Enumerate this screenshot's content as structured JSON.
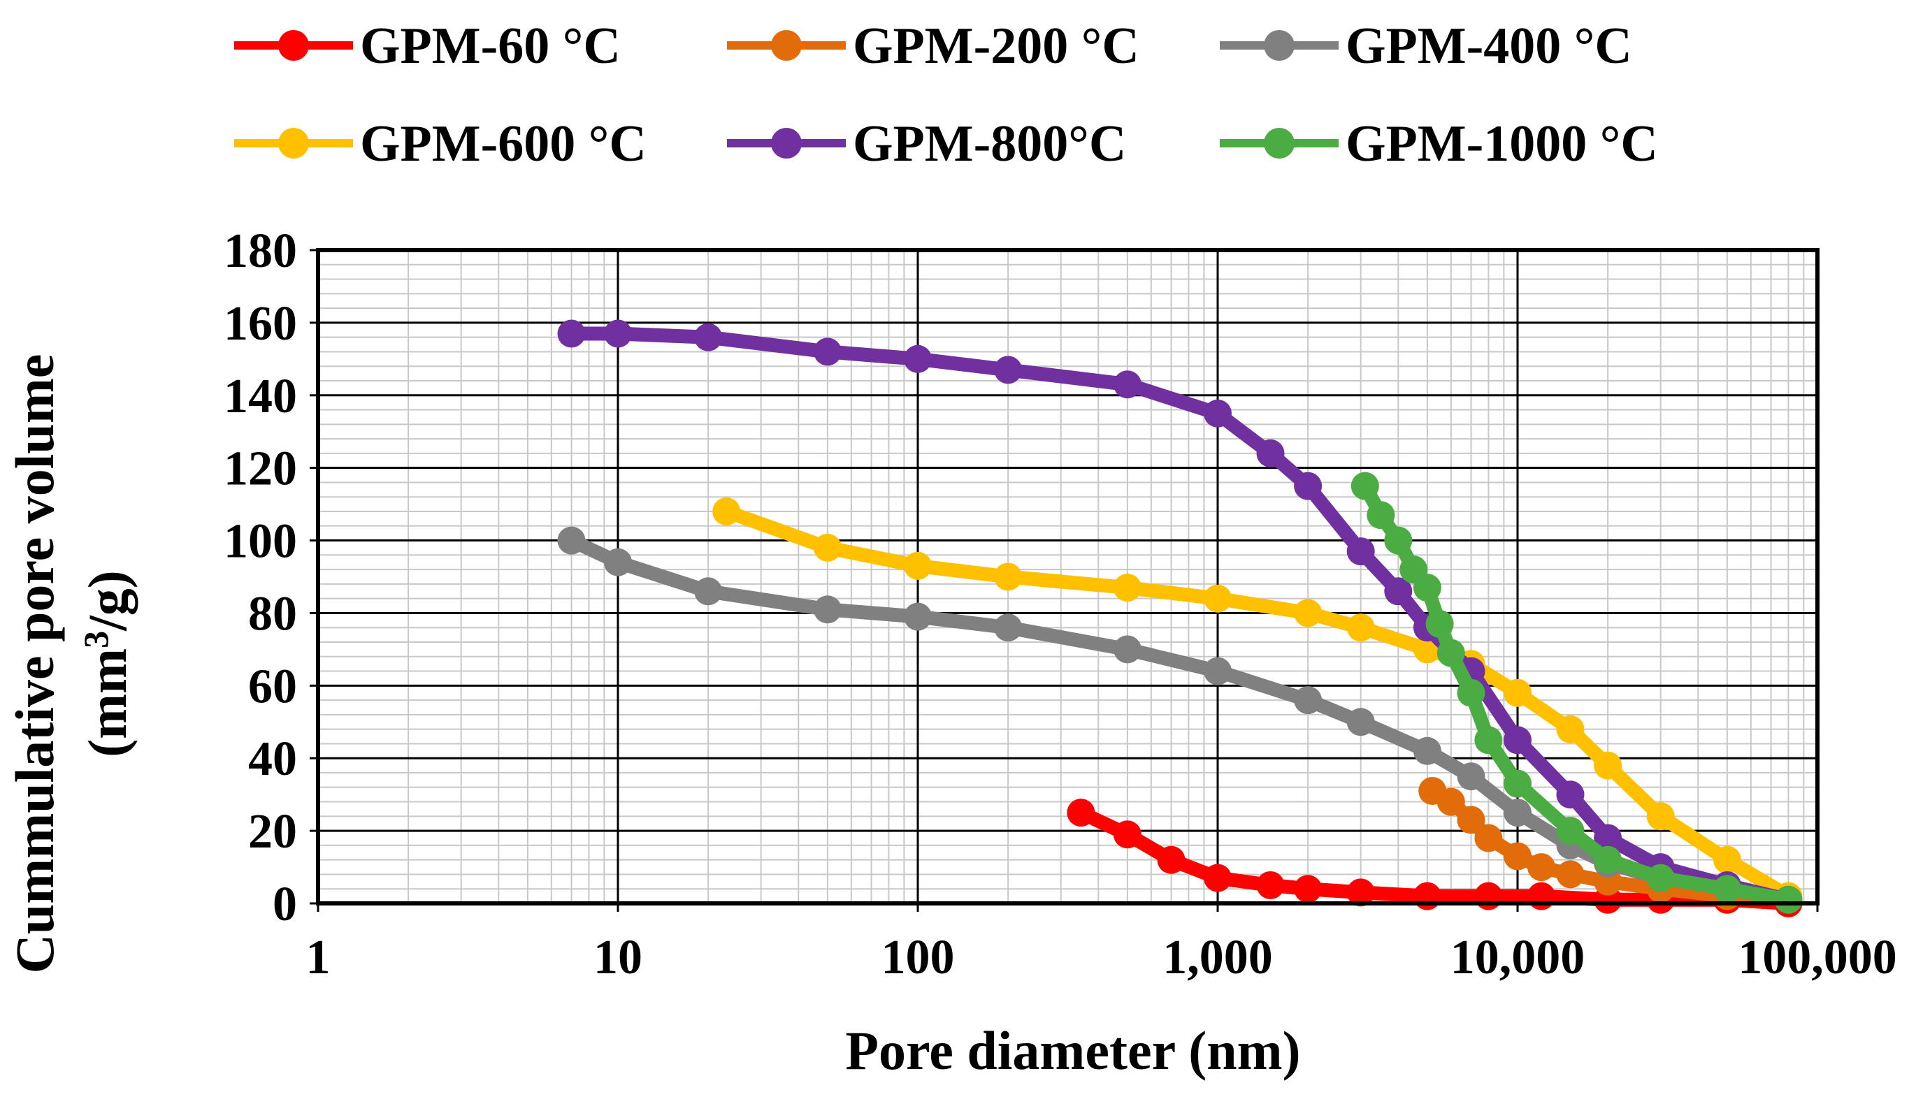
{
  "chart_data": {
    "type": "scatter",
    "xscale": "log",
    "xlabel": "Pore diameter (nm)",
    "ylabel_line1": "Cummulative pore volume",
    "ylabel_line2_main": "(mm",
    "ylabel_line2_sup": "3",
    "ylabel_line2_end": "/g)",
    "xlim": [
      1,
      100000
    ],
    "ylim": [
      0,
      180
    ],
    "xticks": [
      1,
      10,
      100,
      1000,
      10000,
      100000
    ],
    "xtick_labels": [
      "1",
      "10",
      "100",
      "1,000",
      "10,000",
      "100,000"
    ],
    "yticks": [
      0,
      20,
      40,
      60,
      80,
      100,
      120,
      140,
      160,
      180
    ],
    "ytick_labels": [
      "0",
      "20",
      "40",
      "60",
      "80",
      "100",
      "120",
      "140",
      "160",
      "180"
    ],
    "grid": true,
    "legend_position": "top",
    "series": [
      {
        "name": "GPM-60 °C",
        "color": "#ff0000",
        "x": [
          350,
          500,
          700,
          1000,
          1500,
          2000,
          3000,
          5000,
          8000,
          12000,
          20000,
          30000,
          50000,
          80000
        ],
        "y": [
          25,
          19,
          12,
          7,
          5,
          4,
          3,
          2,
          2,
          2,
          1,
          1,
          1,
          0
        ]
      },
      {
        "name": "GPM-200 °C",
        "color": "#e36c0a",
        "x": [
          5200,
          6000,
          7000,
          8000,
          10000,
          12000,
          15000,
          20000,
          30000,
          50000,
          80000
        ],
        "y": [
          31,
          28,
          23,
          18,
          13,
          10,
          8,
          6,
          4,
          2,
          1
        ]
      },
      {
        "name": "GPM-400 °C",
        "color": "#808080",
        "x": [
          7,
          10,
          20,
          50,
          100,
          200,
          500,
          1000,
          2000,
          3000,
          5000,
          7000,
          10000,
          15000,
          20000,
          30000,
          50000,
          80000
        ],
        "y": [
          100,
          94,
          86,
          81,
          79,
          76,
          70,
          64,
          56,
          50,
          42,
          35,
          25,
          16,
          11,
          7,
          4,
          1
        ]
      },
      {
        "name": "GPM-600 °C",
        "color": "#ffc000",
        "x": [
          23,
          50,
          100,
          200,
          500,
          1000,
          2000,
          3000,
          5000,
          7000,
          10000,
          15000,
          20000,
          30000,
          50000,
          80000
        ],
        "y": [
          108,
          98,
          93,
          90,
          87,
          84,
          80,
          76,
          70,
          66,
          58,
          48,
          38,
          24,
          12,
          2
        ]
      },
      {
        "name": "GPM-800°C",
        "color": "#7030a0",
        "x": [
          7,
          10,
          20,
          50,
          100,
          200,
          500,
          1000,
          1500,
          2000,
          3000,
          4000,
          5000,
          7000,
          10000,
          15000,
          20000,
          30000,
          50000,
          80000
        ],
        "y": [
          157,
          157,
          156,
          152,
          150,
          147,
          143,
          135,
          124,
          115,
          97,
          86,
          76,
          64,
          45,
          30,
          18,
          10,
          5,
          1
        ]
      },
      {
        "name": "GPM-1000 °C",
        "color": "#4aac42",
        "x": [
          3100,
          3500,
          4000,
          4500,
          5000,
          5500,
          6000,
          7000,
          8000,
          10000,
          15000,
          20000,
          30000,
          50000,
          80000
        ],
        "y": [
          115,
          107,
          100,
          92,
          87,
          77,
          69,
          58,
          45,
          33,
          20,
          12,
          7,
          4,
          1
        ]
      }
    ]
  }
}
